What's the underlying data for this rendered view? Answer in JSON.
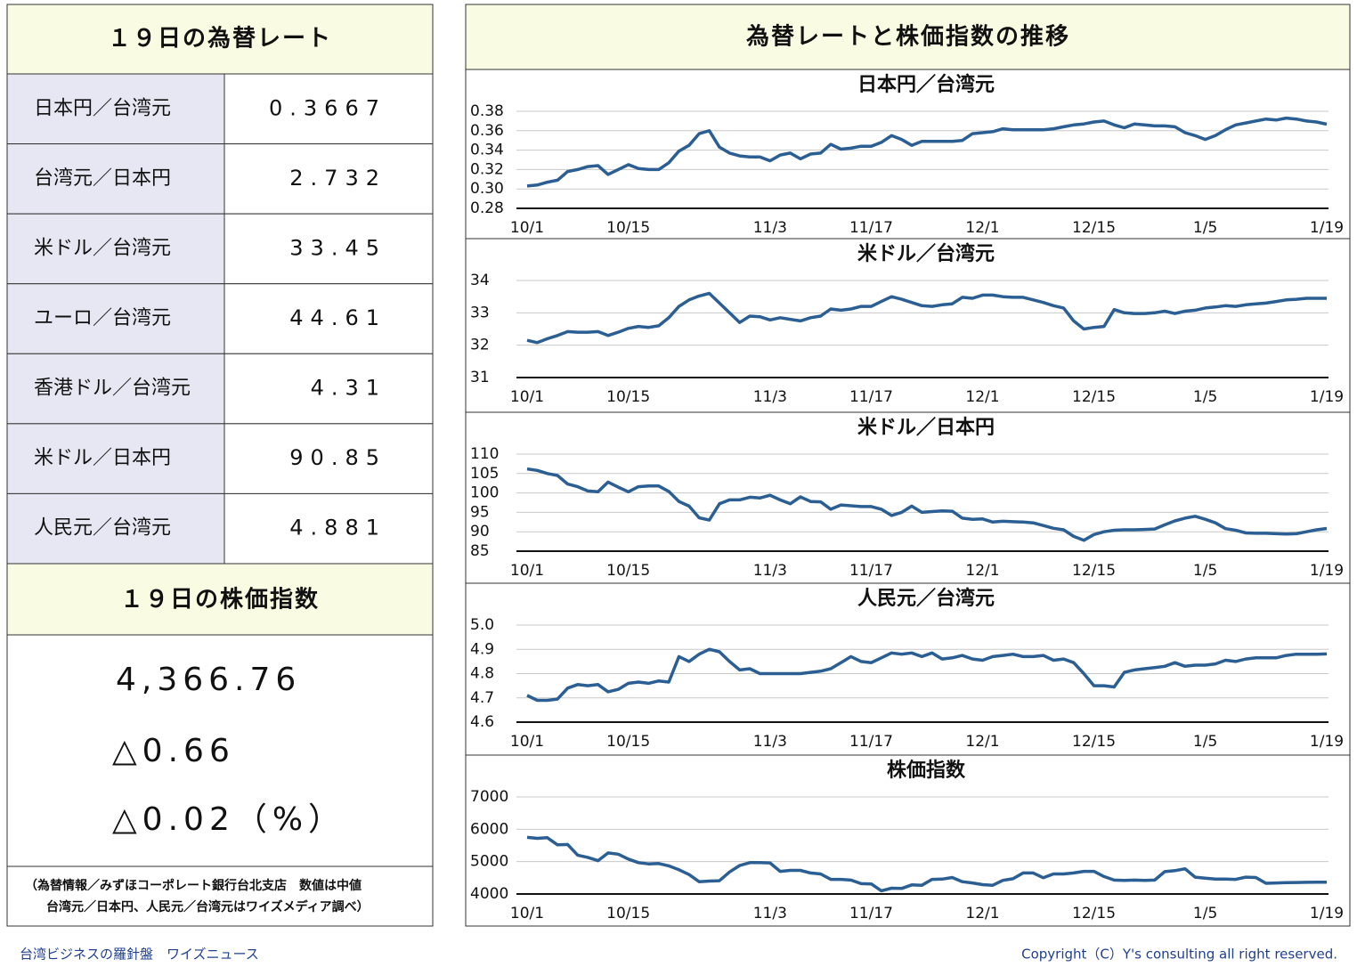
{
  "rates_title": "１９日の為替レート",
  "rates": [
    [
      "日本円／台湾元",
      "0.3667"
    ],
    [
      "台湾元／日本円",
      "2.732"
    ],
    [
      "米ドル／台湾元",
      "33.45"
    ],
    [
      "ユーロ／台湾元",
      "44.61"
    ],
    [
      "香港ドル／台湾元",
      "4.31"
    ],
    [
      "米ドル／日本円",
      "90.85"
    ],
    [
      "人民元／台湾元",
      "4.881"
    ]
  ],
  "stock_title": "１９日の株価指数",
  "stock": [
    "4,366.76",
    "△0.66",
    "△0.02（%）"
  ],
  "note": [
    "（為替情報／みずほコーポレート銀行台北支店　数値は中値",
    "台湾元／日本円、人民元／台湾元はワイズメディア調べ）"
  ],
  "panel_title": "為替レートと株価指数の推移",
  "footer_left": "台湾ビジネスの羅針盤　ワイズニュース",
  "footer_right": "Copyright（C）Y's consulting all right reserved.",
  "chart_data": [
    {
      "type": "line",
      "title": "日本円／台湾元",
      "grid": true,
      "categories": [
        "10/1",
        null,
        null,
        null,
        null,
        null,
        null,
        null,
        null,
        null,
        "10/15",
        null,
        null,
        null,
        null,
        null,
        null,
        null,
        null,
        null,
        null,
        null,
        null,
        null,
        "11/3",
        null,
        null,
        null,
        null,
        null,
        null,
        null,
        null,
        null,
        "11/17",
        null,
        null,
        null,
        null,
        null,
        null,
        null,
        null,
        null,
        null,
        "12/1",
        null,
        null,
        null,
        null,
        null,
        null,
        null,
        null,
        null,
        null,
        "12/15",
        null,
        null,
        null,
        null,
        null,
        null,
        null,
        null,
        null,
        null,
        "1/5",
        null,
        null,
        null,
        null,
        null,
        null,
        null,
        null,
        null,
        null,
        null,
        "1/19"
      ],
      "series": [
        {
          "name": "日本円／台湾元",
          "color": "#2b5f93",
          "values": [
            0.303,
            0.304,
            0.307,
            0.309,
            0.318,
            0.32,
            0.323,
            0.324,
            0.315,
            0.32,
            0.325,
            0.321,
            0.32,
            0.32,
            0.327,
            0.339,
            0.345,
            0.357,
            0.36,
            0.343,
            0.337,
            0.334,
            0.333,
            0.333,
            0.329,
            0.335,
            0.337,
            0.331,
            0.336,
            0.337,
            0.346,
            0.341,
            0.342,
            0.344,
            0.344,
            0.348,
            0.355,
            0.351,
            0.345,
            0.349,
            0.349,
            0.349,
            0.349,
            0.35,
            0.357,
            0.358,
            0.359,
            0.362,
            0.361,
            0.361,
            0.361,
            0.361,
            0.362,
            0.364,
            0.366,
            0.367,
            0.369,
            0.37,
            0.366,
            0.363,
            0.367,
            0.366,
            0.365,
            0.365,
            0.364,
            0.358,
            0.355,
            0.351,
            0.355,
            0.361,
            0.366,
            0.368,
            0.37,
            0.372,
            0.371,
            0.373,
            0.372,
            0.37,
            0.369,
            0.3667
          ]
        }
      ],
      "ylim": [
        0.28,
        0.38
      ],
      "yticks": [
        0.28,
        {
          "value": 0.3,
          "label": "0.30"
        },
        0.32,
        0.34,
        0.36,
        0.38
      ]
    },
    {
      "type": "line",
      "title": "米ドル／台湾元",
      "grid": true,
      "categories": [
        "10/1",
        null,
        null,
        null,
        null,
        null,
        null,
        null,
        null,
        null,
        "10/15",
        null,
        null,
        null,
        null,
        null,
        null,
        null,
        null,
        null,
        null,
        null,
        null,
        null,
        "11/3",
        null,
        null,
        null,
        null,
        null,
        null,
        null,
        null,
        null,
        "11/17",
        null,
        null,
        null,
        null,
        null,
        null,
        null,
        null,
        null,
        null,
        "12/1",
        null,
        null,
        null,
        null,
        null,
        null,
        null,
        null,
        null,
        null,
        "12/15",
        null,
        null,
        null,
        null,
        null,
        null,
        null,
        null,
        null,
        null,
        "1/5",
        null,
        null,
        null,
        null,
        null,
        null,
        null,
        null,
        null,
        null,
        null,
        "1/19"
      ],
      "series": [
        {
          "name": "米ドル／台湾元",
          "color": "#2b5f93",
          "values": [
            32.15,
            32.08,
            32.2,
            32.3,
            32.42,
            32.4,
            32.4,
            32.42,
            32.3,
            32.4,
            32.52,
            32.58,
            32.55,
            32.6,
            32.85,
            33.2,
            33.4,
            33.52,
            33.6,
            33.3,
            33.0,
            32.7,
            32.9,
            32.88,
            32.78,
            32.85,
            32.8,
            32.75,
            32.85,
            32.9,
            33.12,
            33.08,
            33.12,
            33.2,
            33.2,
            33.35,
            33.5,
            33.42,
            33.32,
            33.22,
            33.2,
            33.25,
            33.28,
            33.48,
            33.45,
            33.55,
            33.55,
            33.5,
            33.48,
            33.48,
            33.4,
            33.32,
            33.22,
            33.15,
            32.75,
            32.5,
            32.55,
            32.58,
            33.1,
            33.0,
            32.98,
            32.98,
            33.0,
            33.05,
            32.98,
            33.05,
            33.08,
            33.15,
            33.18,
            33.22,
            33.2,
            33.25,
            33.28,
            33.3,
            33.35,
            33.4,
            33.42,
            33.45,
            33.45,
            33.45
          ]
        }
      ],
      "ylim": [
        31,
        34
      ],
      "yticks": [
        31,
        32,
        33,
        34
      ]
    },
    {
      "type": "line",
      "title": "米ドル／日本円",
      "grid": true,
      "categories": [
        "10/1",
        null,
        null,
        null,
        null,
        null,
        null,
        null,
        null,
        null,
        "10/15",
        null,
        null,
        null,
        null,
        null,
        null,
        null,
        null,
        null,
        null,
        null,
        null,
        null,
        "11/3",
        null,
        null,
        null,
        null,
        null,
        null,
        null,
        null,
        null,
        "11/17",
        null,
        null,
        null,
        null,
        null,
        null,
        null,
        null,
        null,
        null,
        "12/1",
        null,
        null,
        null,
        null,
        null,
        null,
        null,
        null,
        null,
        null,
        "12/15",
        null,
        null,
        null,
        null,
        null,
        null,
        null,
        null,
        null,
        null,
        "1/5",
        null,
        null,
        null,
        null,
        null,
        null,
        null,
        null,
        null,
        null,
        null,
        "1/19"
      ],
      "series": [
        {
          "name": "米ドル／日本円",
          "color": "#2b5f93",
          "values": [
            106.2,
            105.8,
            105,
            104.5,
            102.3,
            101.6,
            100.5,
            100.3,
            102.8,
            101.5,
            100.3,
            101.6,
            101.8,
            101.8,
            100.4,
            97.8,
            96.6,
            93.6,
            93,
            97.2,
            98.2,
            98.2,
            98.9,
            98.7,
            99.4,
            98.2,
            97.2,
            99,
            97.8,
            97.7,
            95.8,
            96.9,
            96.7,
            96.5,
            96.5,
            95.8,
            94.2,
            95,
            96.6,
            95,
            95.2,
            95.4,
            95.3,
            93.5,
            93.2,
            93.3,
            92.5,
            92.7,
            92.6,
            92.5,
            92.3,
            91.6,
            90.9,
            90.5,
            88.8,
            87.8,
            89.3,
            90,
            90.4,
            90.5,
            90.5,
            90.6,
            90.7,
            91.8,
            92.8,
            93.5,
            94,
            93.2,
            92.3,
            90.8,
            90.4,
            89.7,
            89.6,
            89.6,
            89.5,
            89.4,
            89.5,
            90.0,
            90.5,
            90.85
          ]
        }
      ],
      "ylim": [
        85,
        110
      ],
      "yticks": [
        85,
        90,
        95,
        100,
        105,
        110
      ]
    },
    {
      "type": "line",
      "title": "人民元／台湾元",
      "grid": true,
      "categories": [
        "10/1",
        null,
        null,
        null,
        null,
        null,
        null,
        null,
        null,
        null,
        "10/15",
        null,
        null,
        null,
        null,
        null,
        null,
        null,
        null,
        null,
        null,
        null,
        null,
        null,
        "11/3",
        null,
        null,
        null,
        null,
        null,
        null,
        null,
        null,
        null,
        "11/17",
        null,
        null,
        null,
        null,
        null,
        null,
        null,
        null,
        null,
        null,
        "12/1",
        null,
        null,
        null,
        null,
        null,
        null,
        null,
        null,
        null,
        null,
        "12/15",
        null,
        null,
        null,
        null,
        null,
        null,
        null,
        null,
        null,
        null,
        "1/5",
        null,
        null,
        null,
        null,
        null,
        null,
        null,
        null,
        null,
        null,
        null,
        "1/19"
      ],
      "series": [
        {
          "name": "人民元／台湾元",
          "color": "#2b5f93",
          "values": [
            4.71,
            4.69,
            4.69,
            4.695,
            4.74,
            4.755,
            4.75,
            4.755,
            4.725,
            4.735,
            4.76,
            4.765,
            4.76,
            4.77,
            4.765,
            4.87,
            4.85,
            4.88,
            4.9,
            4.89,
            4.85,
            4.815,
            4.82,
            4.8,
            4.8,
            4.8,
            4.8,
            4.8,
            4.805,
            4.81,
            4.82,
            4.845,
            4.87,
            4.85,
            4.845,
            4.865,
            4.885,
            4.88,
            4.885,
            4.87,
            4.885,
            4.86,
            4.865,
            4.875,
            4.86,
            4.855,
            4.87,
            4.875,
            4.88,
            4.87,
            4.87,
            4.875,
            4.855,
            4.86,
            4.845,
            4.8,
            4.75,
            4.75,
            4.745,
            4.805,
            4.815,
            4.82,
            4.825,
            4.83,
            4.845,
            4.83,
            4.835,
            4.835,
            4.84,
            4.855,
            4.85,
            4.86,
            4.865,
            4.865,
            4.865,
            4.875,
            4.88,
            4.88,
            4.88,
            4.881
          ]
        }
      ],
      "ylim": [
        4.6,
        5.0
      ],
      "yticks": [
        4.6,
        4.7,
        4.8,
        4.9,
        {
          "value": 5.0,
          "label": "5.0"
        }
      ]
    },
    {
      "type": "line",
      "title": "株価指数",
      "grid": true,
      "categories": [
        "10/1",
        null,
        null,
        null,
        null,
        null,
        null,
        null,
        null,
        null,
        "10/15",
        null,
        null,
        null,
        null,
        null,
        null,
        null,
        null,
        null,
        null,
        null,
        null,
        null,
        "11/3",
        null,
        null,
        null,
        null,
        null,
        null,
        null,
        null,
        null,
        "11/17",
        null,
        null,
        null,
        null,
        null,
        null,
        null,
        null,
        null,
        null,
        "12/1",
        null,
        null,
        null,
        null,
        null,
        null,
        null,
        null,
        null,
        null,
        "12/15",
        null,
        null,
        null,
        null,
        null,
        null,
        null,
        null,
        null,
        null,
        "1/5",
        null,
        null,
        null,
        null,
        null,
        null,
        null,
        null,
        null,
        null,
        null,
        "1/19"
      ],
      "series": [
        {
          "name": "株価指数",
          "color": "#2b5f93",
          "values": [
            5750,
            5720,
            5740,
            5520,
            5530,
            5200,
            5130,
            5030,
            5270,
            5230,
            5080,
            4970,
            4930,
            4940,
            4870,
            4750,
            4600,
            4380,
            4400,
            4410,
            4680,
            4880,
            4970,
            4970,
            4960,
            4700,
            4730,
            4730,
            4650,
            4620,
            4450,
            4450,
            4430,
            4320,
            4310,
            4100,
            4180,
            4170,
            4280,
            4270,
            4450,
            4460,
            4510,
            4380,
            4340,
            4290,
            4270,
            4420,
            4470,
            4650,
            4650,
            4500,
            4620,
            4620,
            4650,
            4700,
            4700,
            4540,
            4430,
            4420,
            4430,
            4420,
            4430,
            4690,
            4720,
            4780,
            4520,
            4490,
            4460,
            4460,
            4450,
            4520,
            4510,
            4330,
            4340,
            4350,
            4355,
            4360,
            4365,
            4366.76
          ]
        }
      ],
      "ylim": [
        4000,
        7000
      ],
      "yticks": [
        4000,
        5000,
        6000,
        7000
      ]
    }
  ]
}
